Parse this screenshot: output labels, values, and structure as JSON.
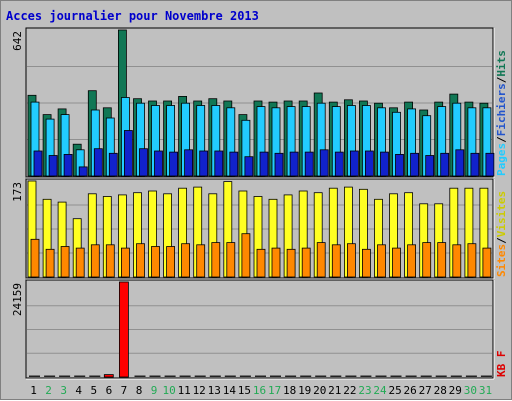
{
  "title": "Acces journalier pour Novembre 2013",
  "chart_data": [
    {
      "type": "bar",
      "panel": "traffic",
      "ymax_label": "642",
      "ylim": [
        0,
        642
      ],
      "x": [
        "1",
        "2",
        "3",
        "4",
        "5",
        "6",
        "7",
        "8",
        "9",
        "10",
        "11",
        "12",
        "13",
        "14",
        "15",
        "16",
        "17",
        "18",
        "19",
        "20",
        "21",
        "22",
        "23",
        "24",
        "25",
        "26",
        "27",
        "28",
        "29",
        "30",
        "31"
      ],
      "series": [
        {
          "name": "Hits",
          "color": "#117755",
          "values": [
            355,
            270,
            295,
            140,
            375,
            300,
            642,
            340,
            330,
            330,
            350,
            330,
            340,
            330,
            270,
            330,
            325,
            330,
            330,
            365,
            325,
            335,
            330,
            320,
            300,
            325,
            290,
            325,
            360,
            325,
            320
          ]
        },
        {
          "name": "Fichiers",
          "color": "#22ccff",
          "values": [
            325,
            250,
            270,
            115,
            290,
            255,
            345,
            320,
            310,
            310,
            320,
            310,
            310,
            300,
            245,
            305,
            300,
            305,
            305,
            320,
            305,
            310,
            310,
            300,
            280,
            295,
            265,
            305,
            320,
            300,
            300
          ]
        },
        {
          "name": "Pages",
          "color": "#1122cc",
          "values": [
            110,
            90,
            95,
            40,
            120,
            100,
            200,
            120,
            110,
            105,
            115,
            110,
            110,
            105,
            85,
            105,
            100,
            105,
            105,
            115,
            105,
            110,
            110,
            105,
            95,
            100,
            90,
            100,
            115,
            100,
            100
          ]
        }
      ],
      "axis_labels": [
        {
          "text": "Pages",
          "color": "#22ccff"
        },
        {
          "text": "Fichiers",
          "color": "#2255cc"
        },
        {
          "text": "Hits",
          "color": "#117755"
        }
      ],
      "separator": "/"
    },
    {
      "type": "bar",
      "panel": "visitors",
      "ymax_label": "173",
      "ylim": [
        0,
        173
      ],
      "series": [
        {
          "name": "Visites",
          "color": "#ffff22",
          "values": [
            173,
            140,
            135,
            105,
            150,
            145,
            148,
            152,
            155,
            150,
            160,
            162,
            150,
            172,
            155,
            145,
            140,
            148,
            155,
            152,
            160,
            162,
            158,
            140,
            150,
            152,
            132,
            132,
            160,
            160,
            160
          ]
        },
        {
          "name": "Sites",
          "color": "#ff8800",
          "values": [
            68,
            50,
            55,
            52,
            58,
            58,
            52,
            60,
            55,
            55,
            60,
            58,
            62,
            62,
            78,
            50,
            52,
            50,
            52,
            62,
            58,
            60,
            50,
            58,
            52,
            58,
            62,
            62,
            58,
            60,
            52
          ]
        }
      ],
      "axis_labels": [
        {
          "text": "Sites",
          "color": "#ff8800"
        },
        {
          "text": "Visites",
          "color": "#cccc00"
        }
      ],
      "separator": "/"
    },
    {
      "type": "bar",
      "panel": "kbytes",
      "ymax_label": "24159",
      "ylim": [
        0,
        24159
      ],
      "series": [
        {
          "name": "KB F",
          "color": "#ff0000",
          "values": [
            50,
            40,
            40,
            40,
            40,
            620,
            24159,
            40,
            40,
            40,
            40,
            40,
            40,
            40,
            40,
            40,
            40,
            40,
            40,
            40,
            40,
            40,
            40,
            40,
            40,
            40,
            40,
            40,
            40,
            40,
            40
          ]
        }
      ],
      "axis_labels": [
        {
          "text": "KB F",
          "color": "#dd0000"
        }
      ]
    }
  ],
  "weekend_days": [
    2,
    3,
    9,
    10,
    16,
    17,
    23,
    24,
    30,
    31
  ],
  "colors": {
    "weekday_label": "#000000",
    "weekend_label": "#22aa55",
    "title": "#0000cc",
    "panel_bg": "#c0c0c0",
    "outline": "#000000"
  }
}
